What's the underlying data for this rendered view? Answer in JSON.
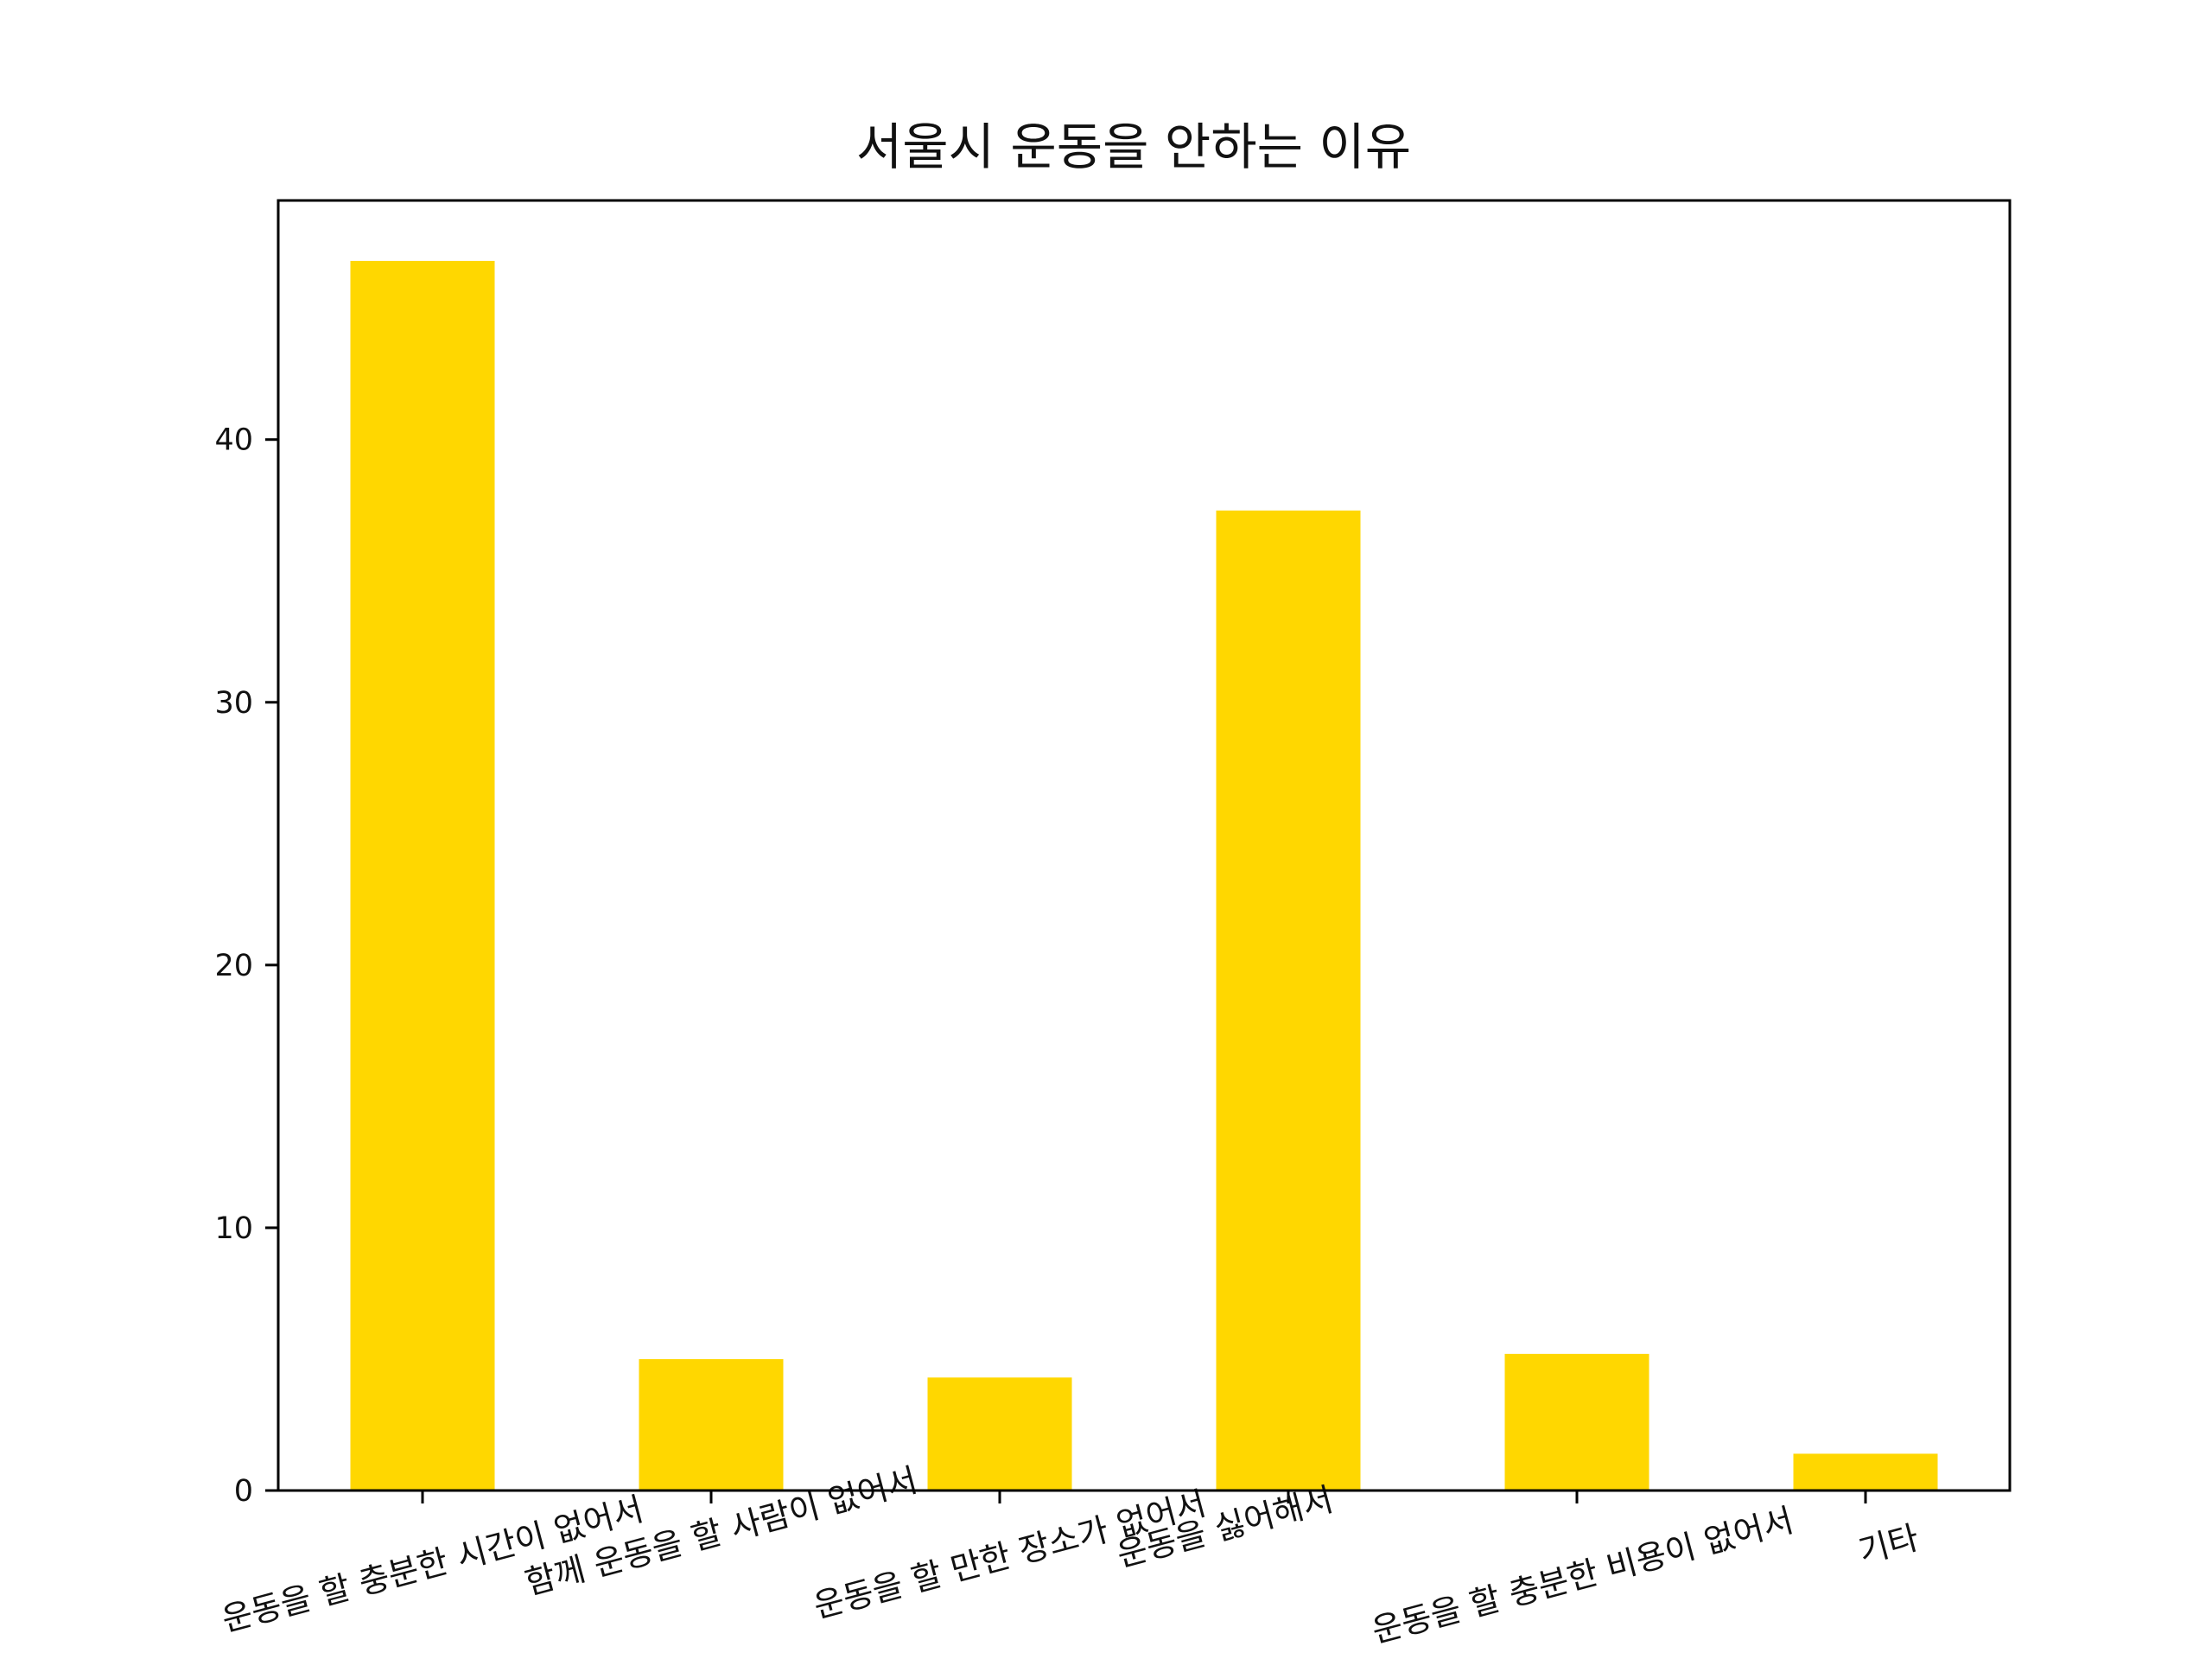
{
  "chart_data": {
    "type": "bar",
    "title": "서울시 운동을 안하는 이유",
    "xlabel": "",
    "ylabel": "",
    "categories": [
      "운동을 할 충분한 시간이 없어서",
      "함께 운동을 할 사람이 없어서",
      "운동을 할 만한 장소가 없어서",
      "운동을 싫어해서",
      "운동을 할 충분한 비용이 없어서",
      "기타"
    ],
    "values": [
      46.8,
      5.0,
      4.3,
      37.3,
      5.2,
      1.4
    ],
    "ylim": [
      0,
      49.1
    ],
    "yticks": [
      0,
      10,
      20,
      30,
      40
    ],
    "bar_color": "#FFD700",
    "grid": false,
    "legend": false
  }
}
